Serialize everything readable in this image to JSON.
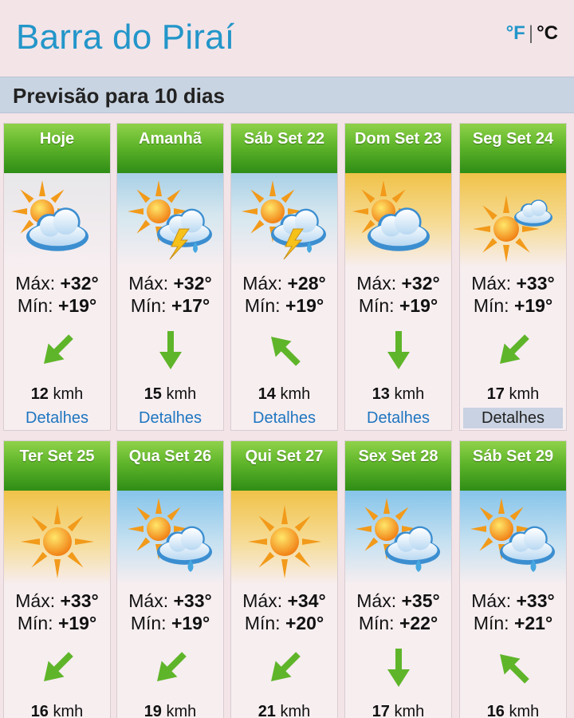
{
  "header": {
    "city": "Barra do Piraí",
    "unit_f": "°F",
    "unit_sep": "|",
    "unit_c": "°C"
  },
  "forecast_bar": {
    "title": "Previsão para 10 dias"
  },
  "labels": {
    "max": "Máx:",
    "min": "Mín:",
    "wind_unit": "kmh",
    "details": "Detalhes"
  },
  "days": [
    {
      "day": "Hoje",
      "icon": "partly-cloudy-icon",
      "bg": "partly",
      "max": "+32°",
      "min": "+19°",
      "wind_dir": "southwest",
      "wind": "12"
    },
    {
      "day": "Amanhã",
      "icon": "thunderstorm-sun-icon",
      "bg": "storm",
      "max": "+32°",
      "min": "+17°",
      "wind_dir": "south",
      "wind": "15"
    },
    {
      "day": "Sáb Set 22",
      "icon": "thunderstorm-sun-icon",
      "bg": "storm",
      "max": "+28°",
      "min": "+19°",
      "wind_dir": "northwest",
      "wind": "14"
    },
    {
      "day": "Dom Set 23",
      "icon": "partly-cloudy-icon",
      "bg": "sunny",
      "max": "+32°",
      "min": "+19°",
      "wind_dir": "south",
      "wind": "13"
    },
    {
      "day": "Seg Set 24",
      "icon": "mostly-sunny-icon",
      "bg": "sunny",
      "max": "+33°",
      "min": "+19°",
      "wind_dir": "southwest",
      "wind": "17",
      "active": true
    },
    {
      "day": "Ter Set 25",
      "icon": "sunny-icon",
      "bg": "sunny",
      "max": "+33°",
      "min": "+19°",
      "wind_dir": "southwest",
      "wind": "16"
    },
    {
      "day": "Qua Set 26",
      "icon": "rain-sun-icon",
      "bg": "rain",
      "max": "+33°",
      "min": "+19°",
      "wind_dir": "southwest",
      "wind": "19"
    },
    {
      "day": "Qui Set 27",
      "icon": "sunny-icon",
      "bg": "sunny",
      "max": "+34°",
      "min": "+20°",
      "wind_dir": "southwest",
      "wind": "21"
    },
    {
      "day": "Sex Set 28",
      "icon": "rain-sun-icon",
      "bg": "rain",
      "max": "+35°",
      "min": "+22°",
      "wind_dir": "south",
      "wind": "17"
    },
    {
      "day": "Sáb Set 29",
      "icon": "rain-sun-icon",
      "bg": "rain",
      "max": "+33°",
      "min": "+21°",
      "wind_dir": "northwest",
      "wind": "16"
    }
  ],
  "colors": {
    "city": "#2396c9",
    "link": "#1f76c0",
    "header_green": "#5fb52a",
    "arrow_green": "#5fb52a"
  }
}
